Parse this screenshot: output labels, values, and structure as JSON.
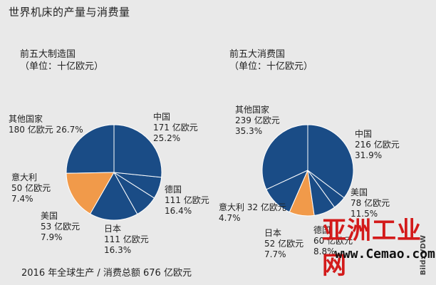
{
  "title": "世界机床的产量与消费量",
  "footer": "2016 年全球生产 / 消费总额 676 亿欧元",
  "credit": "Bild: VDW",
  "watermark": {
    "text": "亚洲工业网",
    "url": "www.Cemao.com"
  },
  "colors": {
    "blue": "#1a4c86",
    "orange": "#f19a4a",
    "edge": "#ffffff"
  },
  "chart_data": [
    {
      "type": "pie",
      "title": "前五大制造国",
      "subtitle": "（单位：十亿欧元）",
      "order": "counterclockwise from top",
      "slices": [
        {
          "name": "中国",
          "value": 171,
          "value_label": "171 亿欧元",
          "percent": "25.2%",
          "color": "blue"
        },
        {
          "name": "德国",
          "value": 111,
          "value_label": "111 亿欧元",
          "percent": "16.4%",
          "color": "orange"
        },
        {
          "name": "日本",
          "value": 111,
          "value_label": "111 亿欧元",
          "percent": "16.3%",
          "color": "blue"
        },
        {
          "name": "美国",
          "value": 53,
          "value_label": "53 亿欧元",
          "percent": "7.9%",
          "color": "blue"
        },
        {
          "name": "意大利",
          "value": 50,
          "value_label": "50 亿欧元",
          "percent": "7.4%",
          "color": "blue"
        },
        {
          "name": "其他国家",
          "value": 180,
          "value_label": "180 亿欧元",
          "percent": "26.7%",
          "color": "blue"
        }
      ]
    },
    {
      "type": "pie",
      "title": "前五大消费国",
      "subtitle": "（单位：十亿欧元）",
      "order": "counterclockwise from top",
      "slices": [
        {
          "name": "中国",
          "value": 216,
          "value_label": "216 亿欧元",
          "percent": "31.9%",
          "color": "blue"
        },
        {
          "name": "美国",
          "value": 78,
          "value_label": "78 亿欧元",
          "percent": "11.5%",
          "color": "blue"
        },
        {
          "name": "德国",
          "value": 60,
          "value_label": "60 亿欧元",
          "percent": "8.8%",
          "color": "orange"
        },
        {
          "name": "日本",
          "value": 52,
          "value_label": "52 亿欧元",
          "percent": "7.7%",
          "color": "blue"
        },
        {
          "name": "意大利",
          "value": 32,
          "value_label": "32 亿欧元",
          "percent": "4.7%",
          "color": "blue"
        },
        {
          "name": "其他国家",
          "value": 239,
          "value_label": "239 亿欧元",
          "percent": "35.3%",
          "color": "blue"
        }
      ]
    }
  ]
}
